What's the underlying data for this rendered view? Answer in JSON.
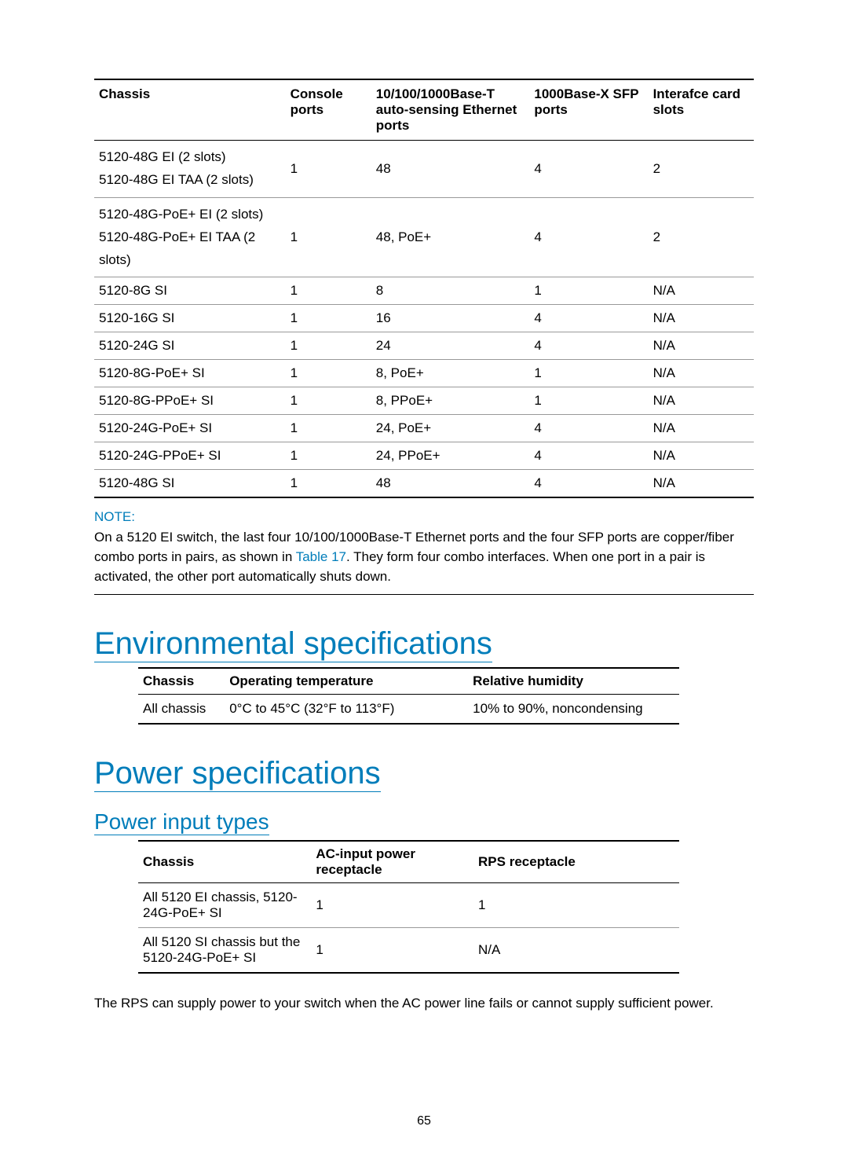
{
  "table1": {
    "headers": {
      "chassis": "Chassis",
      "console": "Console ports",
      "ethernet": "10/100/1000Base-T auto-sensing Ethernet ports",
      "sfp": "1000Base-X SFP ports",
      "slots": "Interafce card slots"
    },
    "col_widths": [
      "29%",
      "13%",
      "24%",
      "18%",
      "16%"
    ],
    "rows": [
      {
        "chassis": "5120-48G EI (2 slots)\n5120-48G EI TAA (2 slots)",
        "console": "1",
        "ethernet": "48",
        "sfp": "4",
        "slots": "2",
        "multi": true
      },
      {
        "chassis": "5120-48G-PoE+ EI (2 slots)\n5120-48G-PoE+ EI TAA (2 slots)",
        "console": "1",
        "ethernet": "48, PoE+",
        "sfp": "4",
        "slots": "2",
        "multi": true
      },
      {
        "chassis": "5120-8G SI",
        "console": "1",
        "ethernet": "8",
        "sfp": "1",
        "slots": "N/A"
      },
      {
        "chassis": "5120-16G SI",
        "console": "1",
        "ethernet": "16",
        "sfp": "4",
        "slots": "N/A"
      },
      {
        "chassis": "5120-24G SI",
        "console": "1",
        "ethernet": "24",
        "sfp": "4",
        "slots": "N/A"
      },
      {
        "chassis": "5120-8G-PoE+ SI",
        "console": "1",
        "ethernet": "8, PoE+",
        "sfp": "1",
        "slots": "N/A"
      },
      {
        "chassis": "5120-8G-PPoE+ SI",
        "console": "1",
        "ethernet": "8, PPoE+",
        "sfp": "1",
        "slots": "N/A"
      },
      {
        "chassis": "5120-24G-PoE+ SI",
        "console": "1",
        "ethernet": "24, PoE+",
        "sfp": "4",
        "slots": "N/A"
      },
      {
        "chassis": "5120-24G-PPoE+ SI",
        "console": "1",
        "ethernet": "24, PPoE+",
        "sfp": "4",
        "slots": "N/A"
      },
      {
        "chassis": "5120-48G SI",
        "console": "1",
        "ethernet": "48",
        "sfp": "4",
        "slots": "N/A"
      }
    ]
  },
  "note": {
    "label": "NOTE:",
    "body_pre": "On a 5120 EI switch, the last four 10/100/1000Base-T Ethernet ports and the four SFP ports are copper/fiber combo ports in pairs, as shown in ",
    "link": "Table 17",
    "body_post": ". They form four combo interfaces. When one port in a pair is activated, the other port automatically shuts down."
  },
  "section_env": "Environmental specifications",
  "table2": {
    "headers": {
      "chassis": "Chassis",
      "temp": "Operating temperature",
      "humidity": "Relative humidity"
    },
    "col_widths": [
      "16%",
      "45%",
      "39%"
    ],
    "rows": [
      {
        "chassis": "All chassis",
        "temp": "0°C to 45°C (32°F to 113°F)",
        "humidity": "10% to 90%, noncondensing"
      }
    ]
  },
  "section_power": "Power specifications",
  "subsection_power_input": "Power input types",
  "table3": {
    "headers": {
      "chassis": "Chassis",
      "ac": "AC-input power receptacle",
      "rps": "RPS receptacle"
    },
    "col_widths": [
      "32%",
      "30%",
      "38%"
    ],
    "rows": [
      {
        "chassis": "All 5120 EI chassis, 5120-24G-PoE+ SI",
        "ac": "1",
        "rps": "1"
      },
      {
        "chassis": "All 5120 SI chassis but the 5120-24G-PoE+ SI",
        "ac": "1",
        "rps": "N/A"
      }
    ]
  },
  "rps_para": "The RPS can supply power to your switch when the AC power line fails or cannot supply sufficient power.",
  "page_number": "65",
  "colors": {
    "accent": "#007dba",
    "text": "#000000",
    "rule_light": "#999999"
  }
}
